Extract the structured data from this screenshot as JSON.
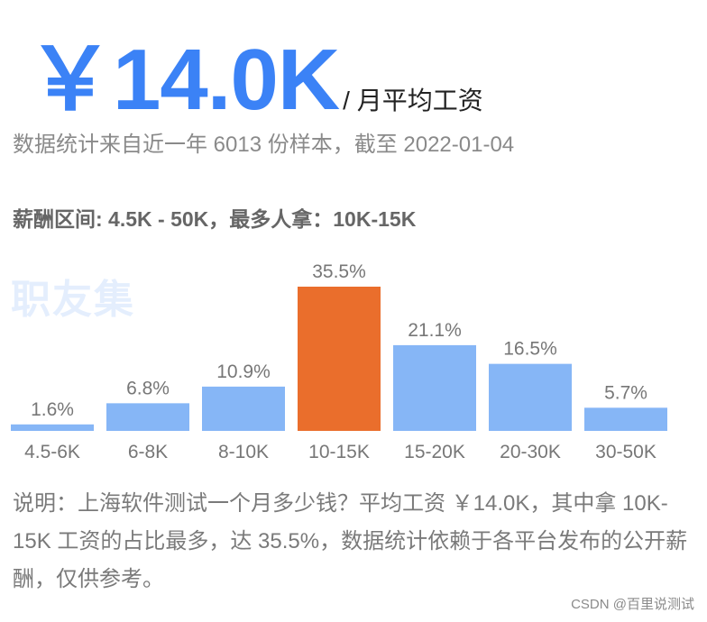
{
  "header": {
    "salary": "￥14.0K",
    "per_month": "/ 月平均工资"
  },
  "subtitle": "数据统计来自近一年 6013 份样本，截至 2022-01-04",
  "range_text": "薪酬区间: 4.5K - 50K，最多人拿：10K-15K",
  "watermark": "职友集",
  "chart_data": {
    "type": "bar",
    "categories": [
      "4.5-6K",
      "6-8K",
      "8-10K",
      "10-15K",
      "15-20K",
      "20-30K",
      "30-50K"
    ],
    "values": [
      1.6,
      6.8,
      10.9,
      35.5,
      21.1,
      16.5,
      5.7
    ],
    "value_labels": [
      "1.6%",
      "6.8%",
      "10.9%",
      "35.5%",
      "21.1%",
      "16.5%",
      "5.7%"
    ],
    "highlight_index": 3,
    "colors": {
      "bar": "#86b6f6",
      "highlight": "#ea6e2c"
    },
    "ylim": [
      0,
      35.5
    ],
    "grid": false
  },
  "explanation": "说明：上海软件测试一个月多少钱？平均工资 ￥14.0K，其中拿 10K-15K 工资的占比最多，达 35.5%，数据统计依赖于各平台发布的公开薪酬，仅供参考。",
  "credit": "CSDN @百里说测试"
}
